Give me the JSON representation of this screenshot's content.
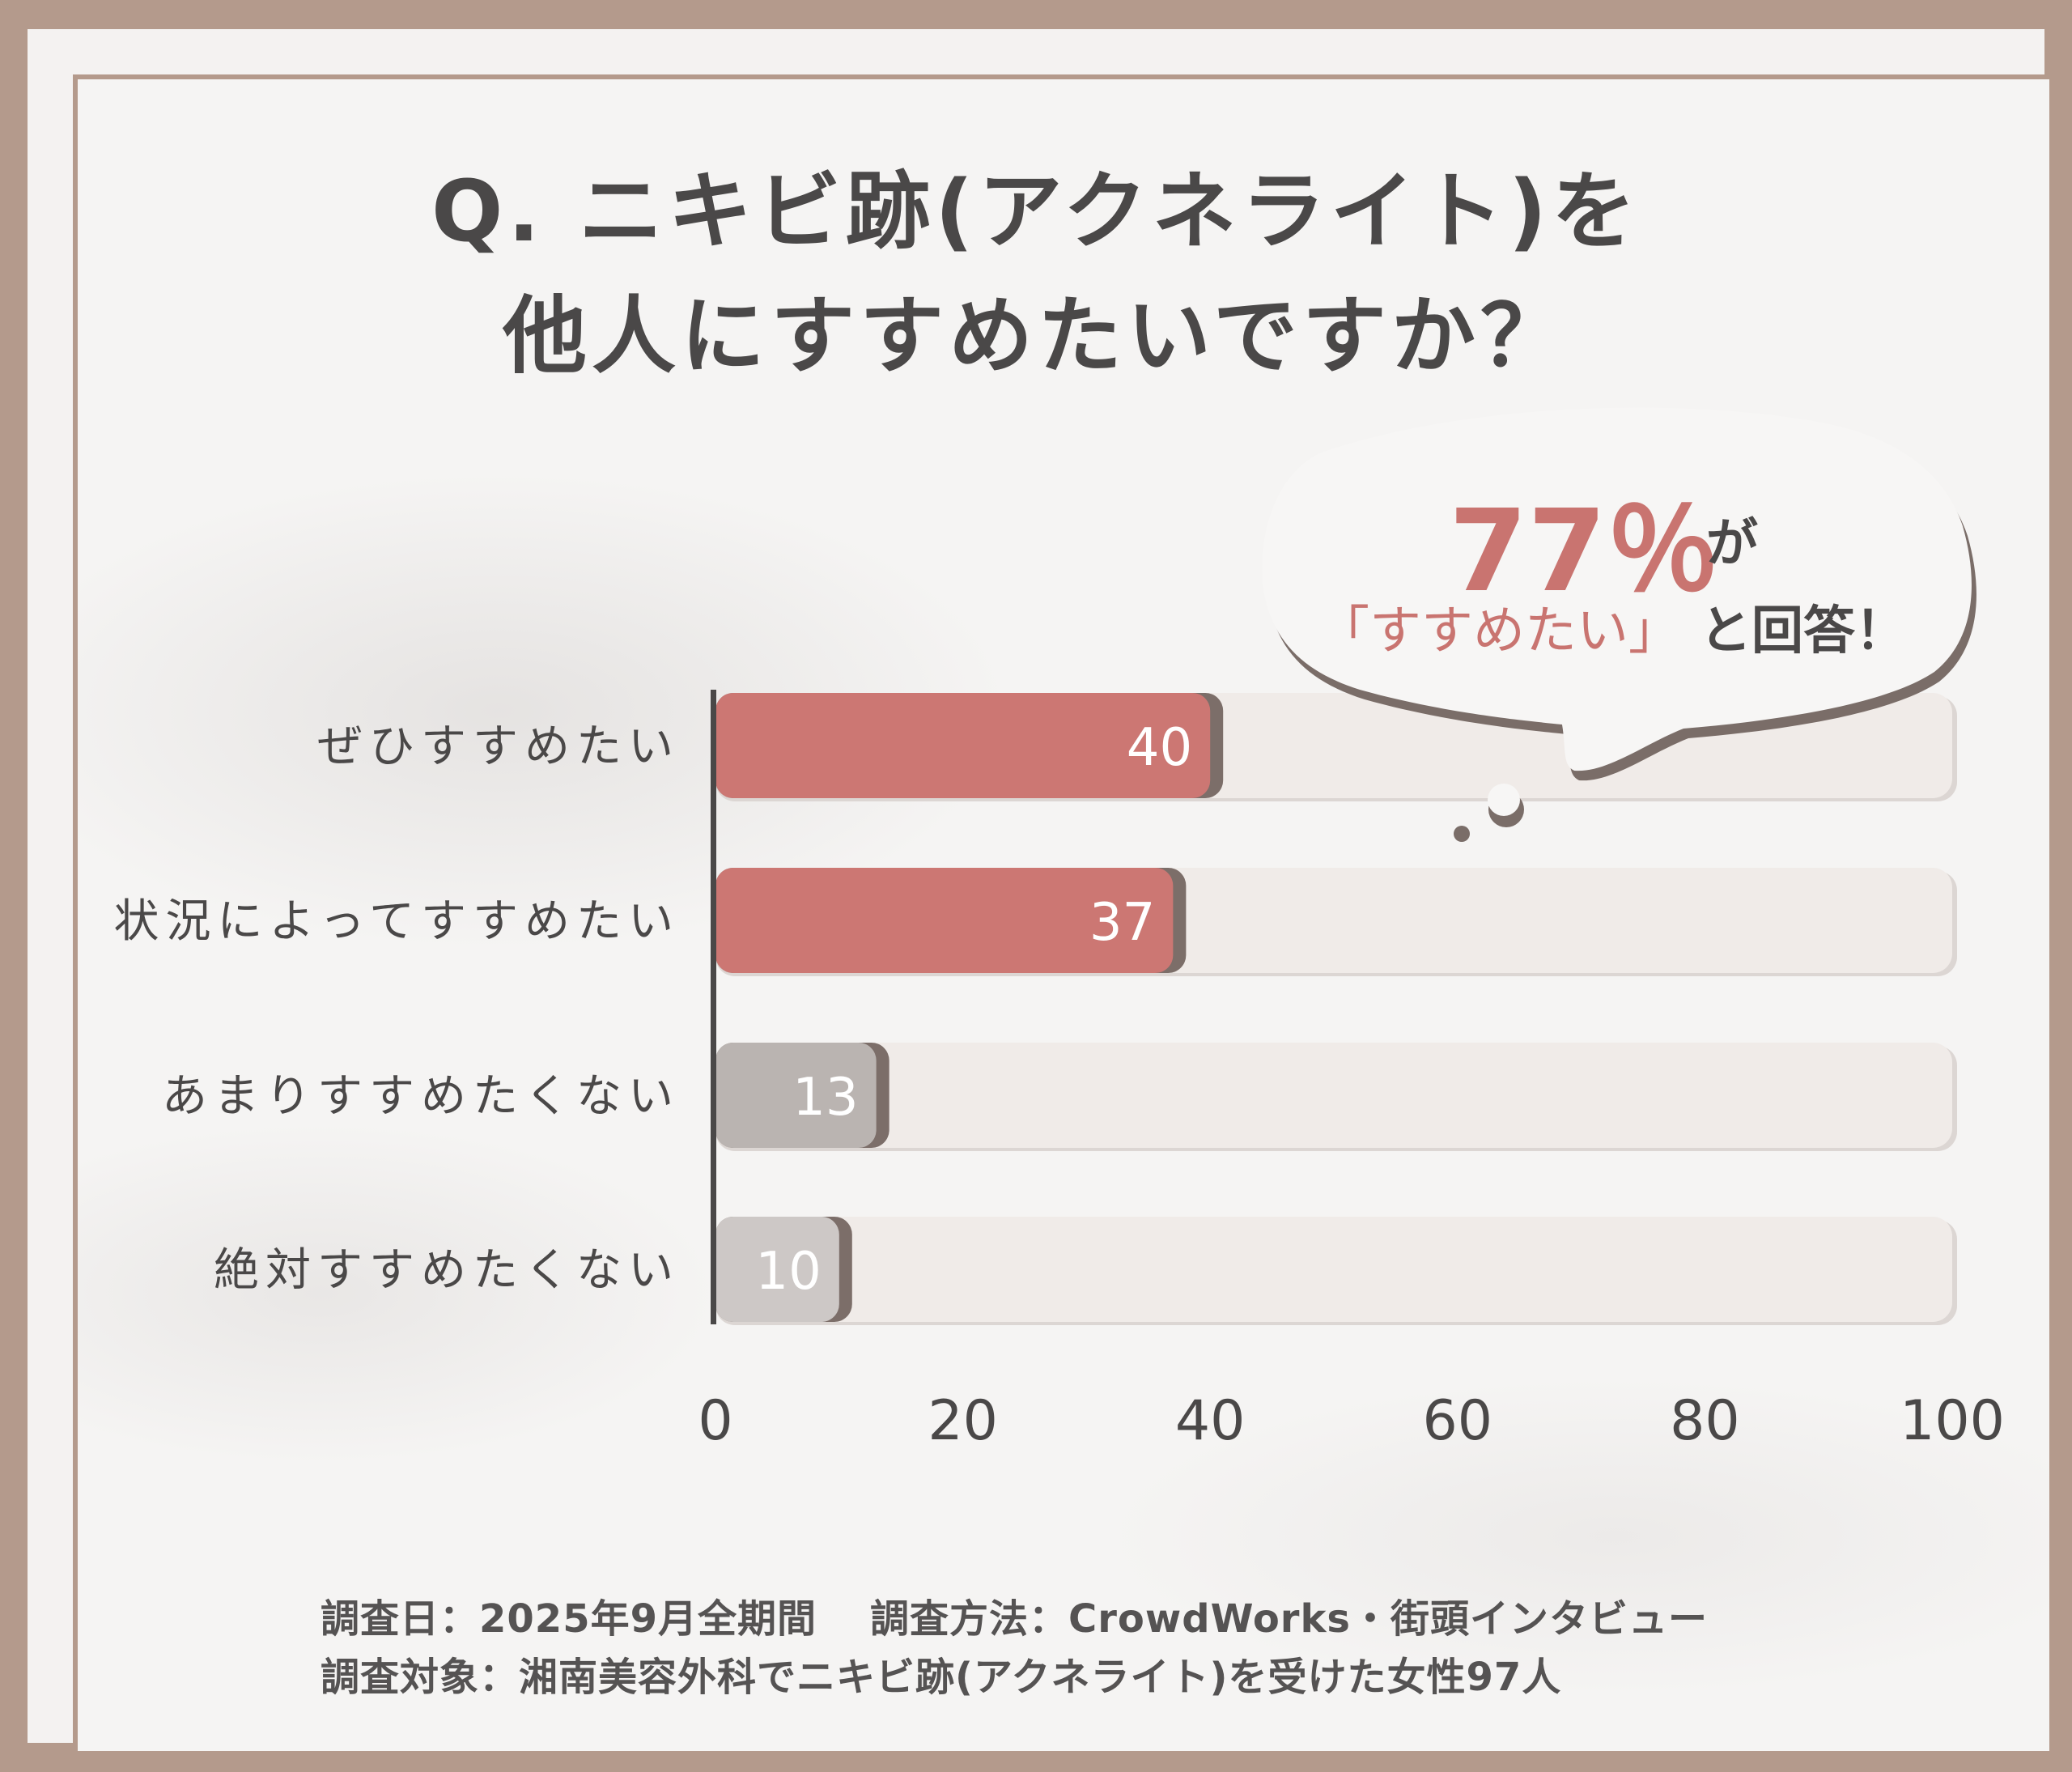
{
  "title": {
    "line1": "Q. ニキビ跡(アクネライト)を",
    "line2": "他人にすすめたいですか？"
  },
  "callout": {
    "percent": "77％",
    "suffix": "が",
    "quote": "「すすめたい」",
    "answer": "と回答！"
  },
  "footnote": {
    "date": "調査日：2025年9月全期間",
    "method": "調査方法：CrowdWorks・街頭インタビュー",
    "target": "調査対象：湘南美容外科でニキビ跡(アクネライト)を受けた女性97人"
  },
  "colors": {
    "recommend": "#cc7773",
    "not_recommend_1": "#bab4b1",
    "not_recommend_2": "#cdc8c6",
    "track": "#f0ebe8",
    "frame": "#b49a8c"
  },
  "chart_data": {
    "type": "bar",
    "orientation": "horizontal",
    "categories": [
      "ぜひすすめたい",
      "状況によってすすめたい",
      "あまりすすめたくない",
      "絶対すすめたくない"
    ],
    "values": [
      40,
      37,
      13,
      10
    ],
    "value_labels": [
      "40",
      "37",
      "13",
      "10"
    ],
    "xlim": [
      0,
      100
    ],
    "xticks": [
      0,
      20,
      40,
      60,
      80,
      100
    ],
    "xtick_labels": [
      "0",
      "20",
      "40",
      "60",
      "80",
      "100"
    ],
    "grid": false,
    "legend": "none"
  }
}
